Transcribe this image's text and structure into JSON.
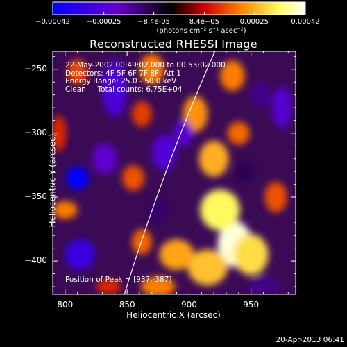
{
  "colorbar": {
    "ticks": [
      "-0.00042",
      "-0.00025",
      "-8.4e-05",
      "8.4e-05",
      "0.00025",
      "0.00042"
    ],
    "unit_label": "(photons cm⁻² s⁻¹ asec⁻²)"
  },
  "annotations": [
    "22-May-2002 00:49:02.000 to 00:55:02.000",
    "Detectors: 4F 5F 6F 7F 8F, Att 1",
    "Energy Range: 25.0 - 50.0 keV",
    "Clean     Total counts: 6.75E+04"
  ],
  "peak_label": "Position of Peak = [937,-387]",
  "footer": "20-Apr-2013 06:41",
  "chart_data": {
    "type": "heatmap",
    "title": "Reconstructed RHESSI Image",
    "xlabel": "Heliocentric X (arcsec)",
    "ylabel": "Heliocentric Y (arcsec)",
    "xlim": [
      790,
      986
    ],
    "ylim": [
      -426,
      -236
    ],
    "xticks": [
      800,
      850,
      900,
      950
    ],
    "yticks": [
      -250,
      -300,
      -350,
      -400
    ],
    "colorbar_range": [
      -0.00042,
      0.00042
    ],
    "colormap": [
      "#0000ff",
      "#6600cc",
      "#000000",
      "#cc0000",
      "#ff8800",
      "#ffff66",
      "#ffffff"
    ],
    "peak": {
      "x": 937,
      "y": -387
    },
    "limb_line_color": "#ffffff",
    "blobs": [
      {
        "x": 937,
        "y": -387,
        "v": 0.0004,
        "rx": 14,
        "ry": 18
      },
      {
        "x": 925,
        "y": -360,
        "v": 0.00033,
        "rx": 16,
        "ry": 16
      },
      {
        "x": 950,
        "y": -395,
        "v": 0.0003,
        "rx": 14,
        "ry": 16
      },
      {
        "x": 915,
        "y": -405,
        "v": 0.00027,
        "rx": 16,
        "ry": 14
      },
      {
        "x": 890,
        "y": -395,
        "v": 0.00024,
        "rx": 14,
        "ry": 12
      },
      {
        "x": 920,
        "y": -320,
        "v": 0.00025,
        "rx": 12,
        "ry": 14
      },
      {
        "x": 905,
        "y": -285,
        "v": 0.00022,
        "rx": 10,
        "ry": 14
      },
      {
        "x": 935,
        "y": -255,
        "v": 0.0002,
        "rx": 10,
        "ry": 12
      },
      {
        "x": 940,
        "y": -300,
        "v": 0.00018,
        "rx": 9,
        "ry": 9
      },
      {
        "x": 875,
        "y": -420,
        "v": 0.0002,
        "rx": 14,
        "ry": 8
      },
      {
        "x": 970,
        "y": -350,
        "v": 0.00016,
        "rx": 9,
        "ry": 12
      },
      {
        "x": 870,
        "y": -250,
        "v": 0.0002,
        "rx": 10,
        "ry": 12
      },
      {
        "x": 862,
        "y": -285,
        "v": 0.00014,
        "rx": 8,
        "ry": 10
      },
      {
        "x": 855,
        "y": -335,
        "v": 0.00016,
        "rx": 9,
        "ry": 10
      },
      {
        "x": 862,
        "y": -385,
        "v": 0.00018,
        "rx": 8,
        "ry": 10
      },
      {
        "x": 800,
        "y": -360,
        "v": 0.0002,
        "rx": 10,
        "ry": 7
      },
      {
        "x": 810,
        "y": -252,
        "v": 0.00015,
        "rx": 8,
        "ry": 10
      },
      {
        "x": 795,
        "y": -300,
        "v": 0.00012,
        "rx": 6,
        "ry": 14
      },
      {
        "x": 835,
        "y": -420,
        "v": 0.00012,
        "rx": 10,
        "ry": 6
      },
      {
        "x": 810,
        "y": -335,
        "v": -0.00042,
        "rx": 9,
        "ry": 9
      },
      {
        "x": 812,
        "y": -395,
        "v": -0.0003,
        "rx": 12,
        "ry": 12
      },
      {
        "x": 840,
        "y": -265,
        "v": -0.00026,
        "rx": 10,
        "ry": 22
      },
      {
        "x": 832,
        "y": -320,
        "v": -0.00022,
        "rx": 10,
        "ry": 12
      },
      {
        "x": 880,
        "y": -315,
        "v": -0.00025,
        "rx": 10,
        "ry": 14
      },
      {
        "x": 895,
        "y": -300,
        "v": -0.00024,
        "rx": 8,
        "ry": 10
      },
      {
        "x": 975,
        "y": -280,
        "v": -0.00024,
        "rx": 8,
        "ry": 16
      },
      {
        "x": 958,
        "y": -270,
        "v": -0.00015,
        "rx": 8,
        "ry": 10
      },
      {
        "x": 960,
        "y": -420,
        "v": -0.00015,
        "rx": 12,
        "ry": 8
      },
      {
        "x": 875,
        "y": -360,
        "v": -0.00012,
        "rx": 8,
        "ry": 10
      },
      {
        "x": 945,
        "y": -330,
        "v": -0.0001,
        "rx": 8,
        "ry": 8
      }
    ]
  }
}
